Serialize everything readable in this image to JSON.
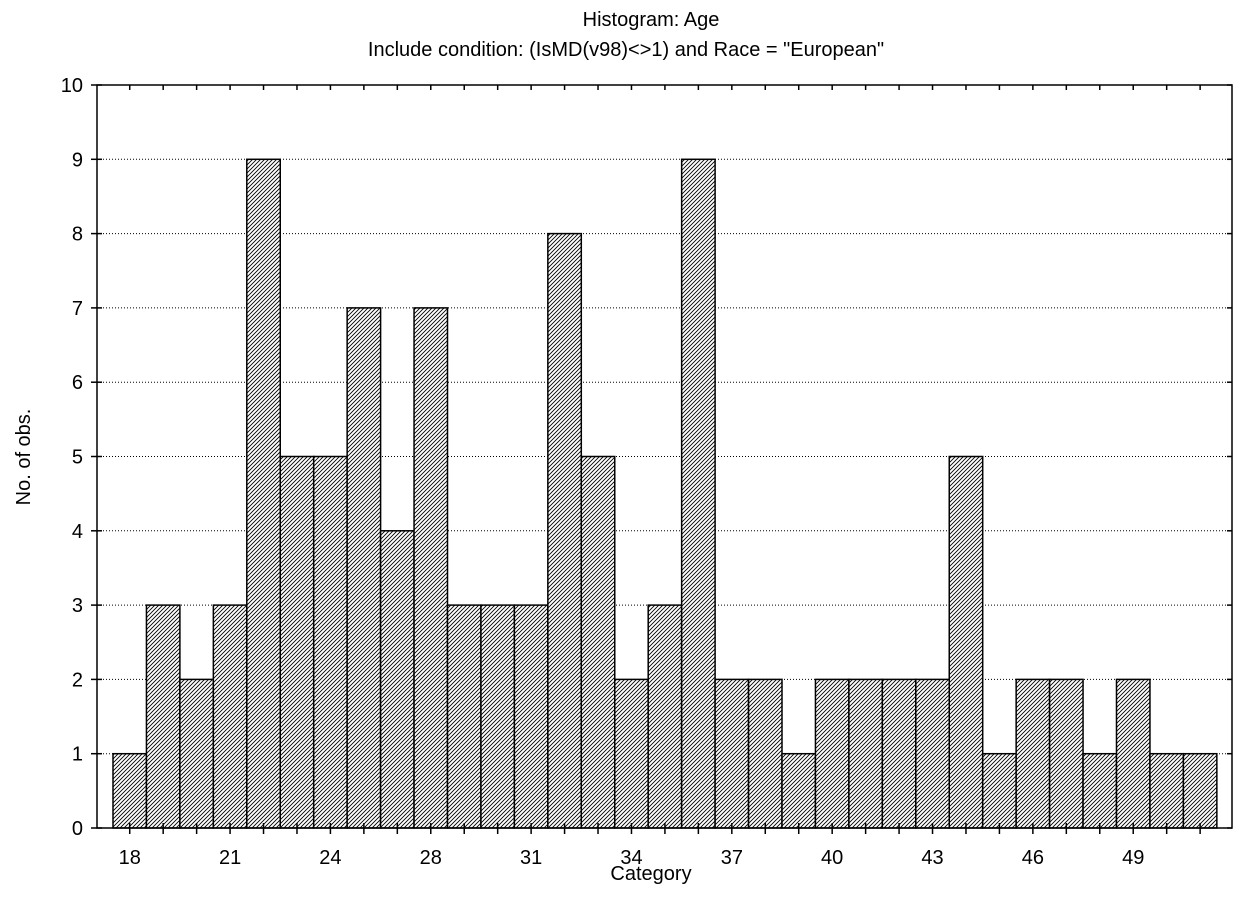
{
  "chart_data": {
    "type": "bar",
    "title": "Histogram: Age",
    "subtitle": "Include condition: (IsMD(v98)<>1)  and Race = \"European\"",
    "xlabel": "Category",
    "ylabel": "No. of obs.",
    "ylim": [
      0,
      10
    ],
    "yticks": [
      "0",
      "1",
      "2",
      "3",
      "4",
      "5",
      "6",
      "7",
      "8",
      "9",
      "10"
    ],
    "xtick_labels": [
      "18",
      "21",
      "24",
      "28",
      "31",
      "34",
      "37",
      "40",
      "43",
      "46",
      "49"
    ],
    "values": [
      1,
      3,
      2,
      3,
      9,
      5,
      5,
      7,
      4,
      7,
      3,
      3,
      3,
      8,
      5,
      2,
      3,
      9,
      2,
      2,
      1,
      2,
      2,
      2,
      2,
      5,
      1,
      2,
      2,
      1,
      2,
      1,
      1
    ],
    "grid": "horizontal dotted",
    "bar_fill": "diagonal hatch",
    "colors": {
      "bar_stroke": "#000000",
      "background": "#ffffff"
    }
  }
}
